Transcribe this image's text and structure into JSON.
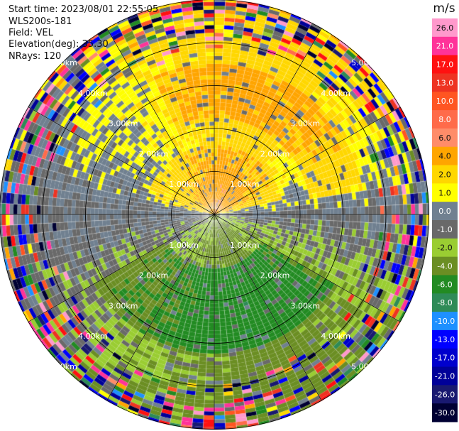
{
  "info": {
    "start_time": "Start time: 2023/08/01 22:55:05",
    "station": "WLS200s-181",
    "field": "Field: VEL",
    "elevation": "Elevation(deg): 35.30",
    "nrays": "NRays: 120"
  },
  "chart_data": {
    "type": "heatmap",
    "projection": "polar-ppi",
    "title": "",
    "field": "VEL",
    "units": "m/s",
    "n_rays": 120,
    "range_rings_km": [
      1,
      2,
      3,
      4,
      5
    ],
    "range_labels": [
      "1.00km",
      "2.00km",
      "3.00km",
      "4.00km",
      "5.00km"
    ],
    "max_range_km": 5.6,
    "spoke_count": 12,
    "colorbar": {
      "title": "m/s",
      "ticks": [
        "26.0",
        "21.0",
        "17.0",
        "13.0",
        "10.0",
        "8.0",
        "6.0",
        "4.0",
        "2.0",
        "1.0",
        "0.0",
        "-1.0",
        "-2.0",
        "-4.0",
        "-6.0",
        "-8.0",
        "-10.0",
        "-13.0",
        "-17.0",
        "-21.0",
        "-26.0",
        "-30.0"
      ],
      "bounds": [
        30,
        26,
        21,
        17,
        13,
        10,
        8,
        6,
        4,
        2,
        1,
        0,
        -1,
        -2,
        -4,
        -6,
        -8,
        -10,
        -13,
        -17,
        -21,
        -26,
        -30
      ],
      "colors": [
        "#ff99cc",
        "#ff3399",
        "#ff1111",
        "#ee3322",
        "#ff5522",
        "#ff6b4a",
        "#ff8c69",
        "#ffa500",
        "#ffd700",
        "#ffff00",
        "#708090",
        "#696969",
        "#9acd32",
        "#6b8e23",
        "#228b22",
        "#2e8b57",
        "#1e90ff",
        "#0000ff",
        "#0000cd",
        "#000099",
        "#191970",
        "#000033"
      ]
    }
  }
}
